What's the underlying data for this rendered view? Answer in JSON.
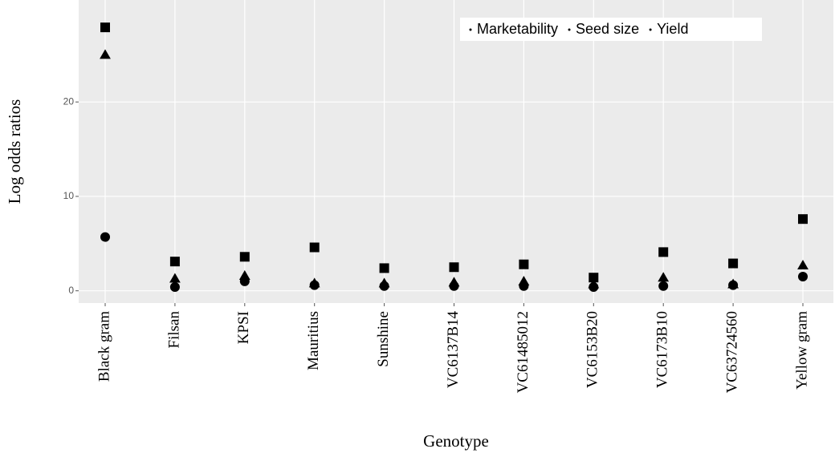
{
  "chart_data": {
    "type": "scatter",
    "x_label": "Genotype",
    "y_label": "Log odds ratios",
    "categories": [
      "Black gram",
      "Filsan",
      "KPSI",
      "Mauritius",
      "Sunshine",
      "VC6137B14",
      "VC61485012",
      "VC6153B20",
      "VC6173B10",
      "VC63724560",
      "Yellow gram"
    ],
    "series": [
      {
        "name": "Marketability",
        "color": "#000000",
        "shape": "circle",
        "values": [
          5.7,
          0.4,
          1.0,
          0.6,
          0.5,
          0.5,
          0.5,
          0.4,
          0.5,
          0.6,
          1.5
        ]
      },
      {
        "name": "Seed size",
        "color": "#000000",
        "shape": "triangle",
        "values": [
          25.0,
          1.3,
          1.6,
          0.8,
          0.8,
          0.9,
          1.0,
          0.7,
          1.4,
          0.7,
          2.7
        ]
      },
      {
        "name": "Yield",
        "color": "#000000",
        "shape": "square",
        "values": [
          27.9,
          3.1,
          3.6,
          4.6,
          2.4,
          2.5,
          2.8,
          1.4,
          4.1,
          2.9,
          7.6
        ]
      }
    ],
    "ylim": [
      -1.3,
      30.8
    ],
    "yticks": [
      0,
      10,
      20
    ],
    "grid": true,
    "legend": "top-right"
  }
}
